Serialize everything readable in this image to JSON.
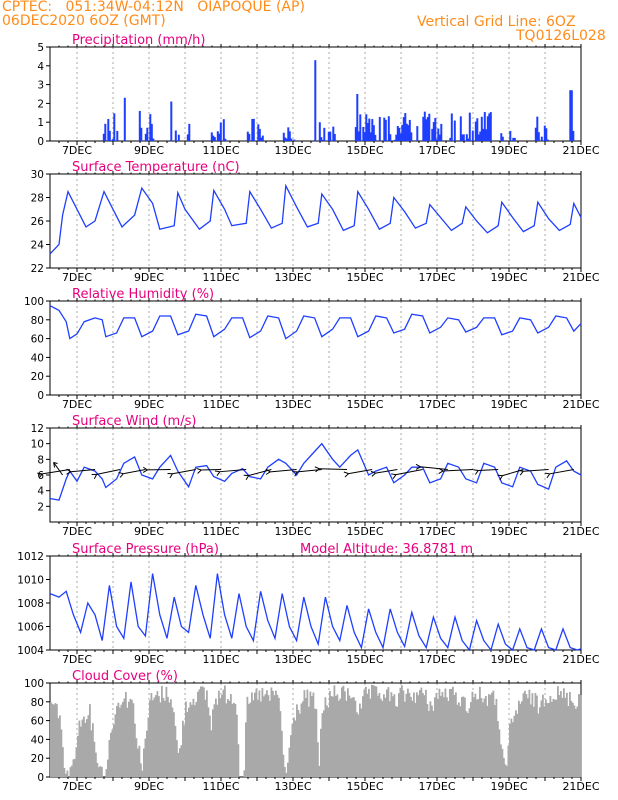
{
  "header": {
    "line1_left": "CPTEC:   051:34W-04:12N   OIAPOQUE (AP)",
    "line2_left": "06DEC2020 6OZ (GMT)",
    "line1_right": "Vertical Grid Line: 6OZ",
    "line2_right": "TQ0126L028"
  },
  "colors": {
    "accent": "#ff8c1a",
    "title": "#e6007e",
    "series": "#1f3fff",
    "bar": "#1f3fff",
    "cloud": "#a9a9a9",
    "axis": "#000000"
  },
  "x_tick_labels": [
    "7DEC",
    "9DEC",
    "11DEC",
    "13DEC",
    "15DEC",
    "17DEC",
    "19DEC",
    "21DEC"
  ],
  "chart_data": [
    {
      "id": "precip",
      "type": "bar",
      "title": "Precipitation (mm/h)",
      "ylim": [
        0,
        5
      ],
      "yticks": [
        0,
        1,
        2,
        3,
        4,
        5
      ],
      "x_range_days": [
        6.25,
        21
      ],
      "values": []
    },
    {
      "id": "temp",
      "type": "line",
      "title": "Surface Temperature (nC)",
      "ylim": [
        22,
        30
      ],
      "yticks": [
        22,
        24,
        26,
        28,
        30
      ],
      "points": [
        [
          6.25,
          23.2
        ],
        [
          6.5,
          24.0
        ],
        [
          6.6,
          26.5
        ],
        [
          6.75,
          28.5
        ],
        [
          7.0,
          27.0
        ],
        [
          7.25,
          25.5
        ],
        [
          7.5,
          26.0
        ],
        [
          7.75,
          28.5
        ],
        [
          8.0,
          27.0
        ],
        [
          8.25,
          25.5
        ],
        [
          8.6,
          26.5
        ],
        [
          8.8,
          28.8
        ],
        [
          9.1,
          27.5
        ],
        [
          9.3,
          25.3
        ],
        [
          9.7,
          25.6
        ],
        [
          9.8,
          28.4
        ],
        [
          10.0,
          27.0
        ],
        [
          10.4,
          25.3
        ],
        [
          10.7,
          26.0
        ],
        [
          10.8,
          28.6
        ],
        [
          11.1,
          27.0
        ],
        [
          11.3,
          25.6
        ],
        [
          11.7,
          25.8
        ],
        [
          11.8,
          28.5
        ],
        [
          12.1,
          27.0
        ],
        [
          12.4,
          25.4
        ],
        [
          12.7,
          25.8
        ],
        [
          12.8,
          29.0
        ],
        [
          13.1,
          27.2
        ],
        [
          13.4,
          25.5
        ],
        [
          13.7,
          25.8
        ],
        [
          13.8,
          28.3
        ],
        [
          14.1,
          27.0
        ],
        [
          14.4,
          25.2
        ],
        [
          14.7,
          25.6
        ],
        [
          14.8,
          28.5
        ],
        [
          15.1,
          27.0
        ],
        [
          15.4,
          25.3
        ],
        [
          15.7,
          25.8
        ],
        [
          15.8,
          28.0
        ],
        [
          16.1,
          26.8
        ],
        [
          16.4,
          25.4
        ],
        [
          16.7,
          25.8
        ],
        [
          16.8,
          27.4
        ],
        [
          17.1,
          26.3
        ],
        [
          17.4,
          25.2
        ],
        [
          17.7,
          25.8
        ],
        [
          17.8,
          27.2
        ],
        [
          18.1,
          26.0
        ],
        [
          18.4,
          25.0
        ],
        [
          18.7,
          25.6
        ],
        [
          18.8,
          27.6
        ],
        [
          19.1,
          26.3
        ],
        [
          19.4,
          25.1
        ],
        [
          19.7,
          25.6
        ],
        [
          19.8,
          27.6
        ],
        [
          20.1,
          26.2
        ],
        [
          20.4,
          25.2
        ],
        [
          20.7,
          25.7
        ],
        [
          20.8,
          27.5
        ],
        [
          21.0,
          26.3
        ]
      ]
    },
    {
      "id": "rh",
      "type": "line",
      "title": "Relative Humidity (%)",
      "ylim": [
        0,
        100
      ],
      "yticks": [
        0,
        20,
        40,
        60,
        80,
        100
      ],
      "points": [
        [
          6.25,
          95
        ],
        [
          6.5,
          90
        ],
        [
          6.7,
          78
        ],
        [
          6.8,
          60
        ],
        [
          7.0,
          65
        ],
        [
          7.2,
          78
        ],
        [
          7.5,
          82
        ],
        [
          7.7,
          80
        ],
        [
          7.8,
          62
        ],
        [
          8.1,
          66
        ],
        [
          8.3,
          82
        ],
        [
          8.6,
          82
        ],
        [
          8.8,
          62
        ],
        [
          9.1,
          68
        ],
        [
          9.3,
          84
        ],
        [
          9.6,
          84
        ],
        [
          9.8,
          64
        ],
        [
          10.1,
          68
        ],
        [
          10.3,
          86
        ],
        [
          10.6,
          84
        ],
        [
          10.8,
          62
        ],
        [
          11.1,
          70
        ],
        [
          11.3,
          82
        ],
        [
          11.6,
          82
        ],
        [
          11.8,
          61
        ],
        [
          12.1,
          68
        ],
        [
          12.3,
          84
        ],
        [
          12.6,
          82
        ],
        [
          12.8,
          60
        ],
        [
          13.1,
          68
        ],
        [
          13.3,
          84
        ],
        [
          13.6,
          82
        ],
        [
          13.8,
          62
        ],
        [
          14.1,
          70
        ],
        [
          14.3,
          82
        ],
        [
          14.6,
          82
        ],
        [
          14.8,
          62
        ],
        [
          15.1,
          68
        ],
        [
          15.3,
          84
        ],
        [
          15.6,
          82
        ],
        [
          15.8,
          66
        ],
        [
          16.1,
          70
        ],
        [
          16.3,
          86
        ],
        [
          16.6,
          84
        ],
        [
          16.8,
          66
        ],
        [
          17.1,
          72
        ],
        [
          17.3,
          82
        ],
        [
          17.6,
          80
        ],
        [
          17.8,
          67
        ],
        [
          18.1,
          72
        ],
        [
          18.3,
          82
        ],
        [
          18.6,
          82
        ],
        [
          18.8,
          64
        ],
        [
          19.1,
          68
        ],
        [
          19.3,
          82
        ],
        [
          19.6,
          80
        ],
        [
          19.8,
          66
        ],
        [
          20.1,
          72
        ],
        [
          20.3,
          84
        ],
        [
          20.6,
          82
        ],
        [
          20.8,
          68
        ],
        [
          21.0,
          76
        ]
      ]
    },
    {
      "id": "wind",
      "type": "line",
      "title": "Surface Wind (m/s)",
      "ylim": [
        0,
        12
      ],
      "yticks": [
        2,
        4,
        6,
        8,
        10,
        12
      ],
      "points": [
        [
          6.25,
          3.0
        ],
        [
          6.5,
          2.8
        ],
        [
          6.7,
          5.5
        ],
        [
          6.8,
          6.5
        ],
        [
          7.0,
          5.2
        ],
        [
          7.2,
          7.0
        ],
        [
          7.5,
          6.5
        ],
        [
          7.7,
          5.5
        ],
        [
          7.8,
          4.4
        ],
        [
          8.1,
          5.5
        ],
        [
          8.3,
          7.5
        ],
        [
          8.6,
          8.3
        ],
        [
          8.8,
          6.0
        ],
        [
          9.1,
          5.5
        ],
        [
          9.3,
          7.0
        ],
        [
          9.6,
          8.5
        ],
        [
          9.8,
          6.5
        ],
        [
          10.1,
          4.5
        ],
        [
          10.3,
          7.0
        ],
        [
          10.6,
          7.2
        ],
        [
          10.8,
          5.8
        ],
        [
          11.1,
          5.2
        ],
        [
          11.3,
          6.2
        ],
        [
          11.6,
          6.8
        ],
        [
          11.8,
          5.8
        ],
        [
          12.1,
          5.5
        ],
        [
          12.3,
          7.0
        ],
        [
          12.6,
          8.0
        ],
        [
          12.8,
          7.5
        ],
        [
          13.1,
          6.0
        ],
        [
          13.3,
          7.5
        ],
        [
          13.6,
          9.0
        ],
        [
          13.8,
          10.0
        ],
        [
          14.1,
          8.0
        ],
        [
          14.3,
          7.0
        ],
        [
          14.6,
          8.5
        ],
        [
          14.8,
          9.2
        ],
        [
          15.1,
          6.0
        ],
        [
          15.3,
          6.5
        ],
        [
          15.6,
          7.0
        ],
        [
          15.8,
          5.0
        ],
        [
          16.1,
          6.0
        ],
        [
          16.3,
          7.0
        ],
        [
          16.6,
          7.0
        ],
        [
          16.8,
          5.0
        ],
        [
          17.1,
          5.5
        ],
        [
          17.3,
          7.5
        ],
        [
          17.6,
          7.0
        ],
        [
          17.8,
          5.5
        ],
        [
          18.1,
          5.0
        ],
        [
          18.3,
          7.5
        ],
        [
          18.6,
          7.0
        ],
        [
          18.8,
          5.0
        ],
        [
          19.1,
          4.5
        ],
        [
          19.3,
          7.0
        ],
        [
          19.6,
          6.5
        ],
        [
          19.8,
          4.8
        ],
        [
          20.1,
          4.2
        ],
        [
          20.3,
          7.0
        ],
        [
          20.6,
          7.8
        ],
        [
          20.8,
          6.5
        ],
        [
          21.0,
          6.0
        ]
      ]
    },
    {
      "id": "press",
      "type": "line",
      "title": "Surface Pressure (hPa)",
      "ylim": [
        1004,
        1012
      ],
      "yticks": [
        1004,
        1006,
        1008,
        1010,
        1012
      ],
      "annotation": "Model Altitude: 36.8781 m",
      "points": [
        [
          6.25,
          1008.8
        ],
        [
          6.5,
          1008.5
        ],
        [
          6.7,
          1009.0
        ],
        [
          6.9,
          1007.0
        ],
        [
          7.1,
          1005.5
        ],
        [
          7.3,
          1008.0
        ],
        [
          7.5,
          1007.0
        ],
        [
          7.7,
          1004.8
        ],
        [
          7.9,
          1009.5
        ],
        [
          8.1,
          1006.0
        ],
        [
          8.3,
          1005.0
        ],
        [
          8.5,
          1009.8
        ],
        [
          8.7,
          1006.0
        ],
        [
          8.9,
          1005.2
        ],
        [
          9.1,
          1010.5
        ],
        [
          9.3,
          1007.0
        ],
        [
          9.5,
          1005.0
        ],
        [
          9.7,
          1008.5
        ],
        [
          9.9,
          1006.0
        ],
        [
          10.1,
          1005.5
        ],
        [
          10.3,
          1009.5
        ],
        [
          10.5,
          1007.0
        ],
        [
          10.7,
          1005.0
        ],
        [
          10.9,
          1010.5
        ],
        [
          11.1,
          1007.0
        ],
        [
          11.3,
          1005.0
        ],
        [
          11.5,
          1008.8
        ],
        [
          11.7,
          1006.0
        ],
        [
          11.9,
          1004.8
        ],
        [
          12.1,
          1009.0
        ],
        [
          12.3,
          1006.5
        ],
        [
          12.5,
          1005.0
        ],
        [
          12.7,
          1008.8
        ],
        [
          12.9,
          1006.0
        ],
        [
          13.1,
          1004.8
        ],
        [
          13.3,
          1008.5
        ],
        [
          13.5,
          1006.0
        ],
        [
          13.7,
          1004.5
        ],
        [
          13.9,
          1008.5
        ],
        [
          14.1,
          1006.0
        ],
        [
          14.3,
          1004.8
        ],
        [
          14.5,
          1007.8
        ],
        [
          14.7,
          1005.5
        ],
        [
          14.9,
          1004.2
        ],
        [
          15.1,
          1007.5
        ],
        [
          15.3,
          1005.5
        ],
        [
          15.5,
          1004.2
        ],
        [
          15.7,
          1007.5
        ],
        [
          15.9,
          1005.5
        ],
        [
          16.1,
          1004.3
        ],
        [
          16.3,
          1007.2
        ],
        [
          16.5,
          1005.2
        ],
        [
          16.7,
          1004.2
        ],
        [
          16.9,
          1006.8
        ],
        [
          17.1,
          1005.0
        ],
        [
          17.3,
          1004.2
        ],
        [
          17.5,
          1006.8
        ],
        [
          17.7,
          1004.8
        ],
        [
          17.9,
          1004.0
        ],
        [
          18.1,
          1006.5
        ],
        [
          18.3,
          1004.8
        ],
        [
          18.5,
          1004.0
        ],
        [
          18.7,
          1006.2
        ],
        [
          18.9,
          1004.5
        ],
        [
          19.1,
          1004.0
        ],
        [
          19.3,
          1005.8
        ],
        [
          19.5,
          1004.2
        ],
        [
          19.7,
          1004.0
        ],
        [
          19.9,
          1005.8
        ],
        [
          20.1,
          1004.2
        ],
        [
          20.3,
          1004.0
        ],
        [
          20.5,
          1005.8
        ],
        [
          20.7,
          1004.2
        ],
        [
          20.9,
          1004.0
        ],
        [
          21.0,
          1004.1
        ]
      ]
    },
    {
      "id": "cloud",
      "type": "bar",
      "title": "Cloud Cover (%)",
      "ylim": [
        0,
        100
      ],
      "yticks": [
        0,
        20,
        40,
        60,
        80,
        100
      ],
      "segments": [
        [
          6.25,
          88
        ],
        [
          6.5,
          80
        ],
        [
          6.6,
          25
        ],
        [
          6.8,
          10
        ],
        [
          7.0,
          60
        ],
        [
          7.3,
          85
        ],
        [
          7.6,
          20
        ],
        [
          7.75,
          12
        ],
        [
          8.0,
          75
        ],
        [
          8.2,
          95
        ],
        [
          8.5,
          92
        ],
        [
          8.7,
          40
        ],
        [
          8.8,
          20
        ],
        [
          9.0,
          90
        ],
        [
          9.3,
          98
        ],
        [
          9.6,
          98
        ],
        [
          9.8,
          30
        ],
        [
          10.0,
          85
        ],
        [
          10.3,
          98
        ],
        [
          10.6,
          98
        ],
        [
          10.7,
          60
        ],
        [
          10.8,
          95
        ],
        [
          11.1,
          98
        ],
        [
          11.4,
          95
        ],
        [
          11.5,
          10
        ],
        [
          11.6,
          5
        ],
        [
          11.7,
          85
        ],
        [
          12.0,
          98
        ],
        [
          12.3,
          95
        ],
        [
          12.6,
          98
        ],
        [
          12.7,
          30
        ],
        [
          12.8,
          15
        ],
        [
          13.0,
          75
        ],
        [
          13.3,
          95
        ],
        [
          13.6,
          90
        ],
        [
          13.7,
          20
        ],
        [
          13.8,
          85
        ],
        [
          14.1,
          98
        ],
        [
          14.4,
          98
        ],
        [
          14.7,
          98
        ],
        [
          14.8,
          75
        ],
        [
          15.0,
          98
        ],
        [
          15.3,
          98
        ],
        [
          15.6,
          98
        ],
        [
          15.8,
          90
        ],
        [
          16.0,
          98
        ],
        [
          16.3,
          98
        ],
        [
          16.6,
          98
        ],
        [
          16.8,
          85
        ],
        [
          17.0,
          98
        ],
        [
          17.3,
          98
        ],
        [
          17.6,
          95
        ],
        [
          17.8,
          85
        ],
        [
          18.0,
          98
        ],
        [
          18.3,
          95
        ],
        [
          18.6,
          92
        ],
        [
          18.8,
          40
        ],
        [
          18.9,
          5
        ],
        [
          19.0,
          60
        ],
        [
          19.3,
          92
        ],
        [
          19.6,
          95
        ],
        [
          19.8,
          85
        ],
        [
          20.0,
          98
        ],
        [
          20.3,
          98
        ],
        [
          20.6,
          95
        ],
        [
          20.8,
          90
        ],
        [
          21.0,
          98
        ]
      ]
    }
  ]
}
